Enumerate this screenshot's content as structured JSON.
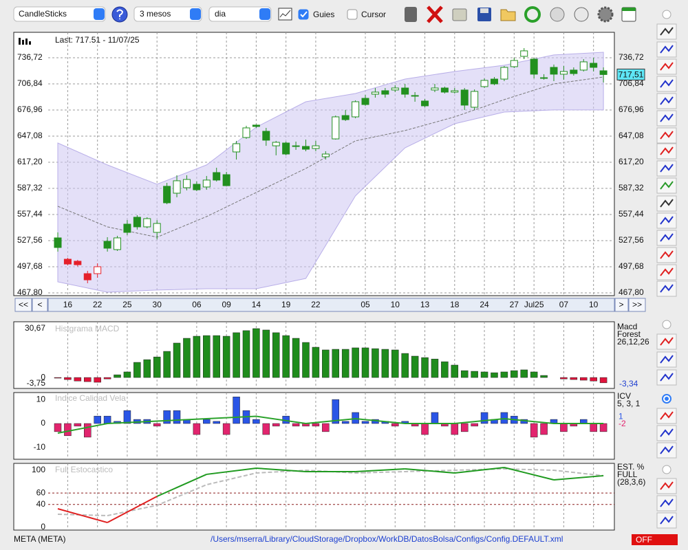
{
  "toolbar": {
    "chart_type": "CandleSticks",
    "range": "3 mesos",
    "interval": "dia",
    "guides": "Guies",
    "guides_checked": true,
    "cursor": "Cursor",
    "cursor_checked": false
  },
  "navigation": {
    "first": "<<",
    "prev": "<",
    "next": ">",
    "last": ">>"
  },
  "status": {
    "symbol": "META (META)",
    "path": "/Users/mserra/Library/CloudStorage/Dropbox/WorkDB/DatosBolsa/Configs/Config.DEFAULT.xml",
    "mode": "OFF"
  },
  "chart_data": [
    {
      "type": "candlestick",
      "annotation": "Last: 717.51 - 11/07/25",
      "categories": [
        null,
        "16",
        null,
        null,
        "22",
        null,
        null,
        "25",
        null,
        null,
        "30",
        null,
        null,
        null,
        "06",
        null,
        null,
        "09",
        null,
        null,
        "14",
        null,
        null,
        "19",
        null,
        null,
        "22",
        null,
        null,
        null,
        null,
        "05",
        null,
        null,
        "10",
        null,
        null,
        "13",
        null,
        null,
        "18",
        null,
        null,
        "24",
        null,
        null,
        "27",
        null,
        "Jul25",
        null,
        null,
        "07",
        null,
        null,
        "10",
        null
      ],
      "open": [
        530.7,
        506.3,
        504,
        489.8,
        489.8,
        526.8,
        517.3,
        546.4,
        554.3,
        543.3,
        537,
        589.7,
        581.8,
        588.1,
        592,
        588.9,
        605.4,
        603,
        629,
        645.5,
        659.7,
        652.6,
        636,
        639.2,
        635.3,
        635.3,
        632.9,
        623.5,
        643.9,
        670.6,
        669.1,
        690.3,
        695,
        699,
        699.8,
        702.1,
        692.7,
        687.2,
        699.8,
        702.1,
        697.4,
        699.8,
        680.1,
        703.7,
        712.3,
        712.3,
        726.5,
        738.3,
        735.1,
        713.9,
        725.7,
        717.9,
        722.6,
        722.6,
        730.4,
        721.8
      ],
      "high": [
        537,
        507.9,
        505.5,
        493,
        501.6,
        531.5,
        533,
        551.1,
        556.7,
        554.3,
        551,
        593.6,
        602.3,
        602.3,
        595.2,
        601.5,
        610.9,
        606.2,
        641.6,
        658.9,
        660.5,
        656.5,
        641.6,
        640.8,
        640.8,
        643.1,
        641.6,
        629.8,
        670.6,
        677,
        688,
        694.2,
        702.1,
        702.1,
        705.3,
        706.8,
        697.4,
        689.5,
        706.8,
        703.7,
        702.1,
        702.1,
        700.5,
        713.1,
        714.7,
        727.3,
        736.7,
        747.7,
        736.7,
        717.9,
        728.9,
        727.3,
        725.7,
        735.1,
        736.7,
        725.7
      ],
      "low": [
        515,
        499.2,
        498,
        478.8,
        485.1,
        515,
        515.8,
        533.8,
        540.2,
        541.7,
        529,
        569.2,
        577.1,
        585,
        584.2,
        585.7,
        595.2,
        590.4,
        620.3,
        643.9,
        656.5,
        636,
        625.1,
        625.1,
        631.4,
        629.8,
        629.8,
        620.3,
        643.1,
        664.4,
        667.5,
        681.7,
        691.1,
        691.1,
        697.4,
        691.1,
        686.4,
        680.1,
        697.4,
        695.8,
        695.8,
        677,
        677,
        702.1,
        705.3,
        710,
        724.9,
        735.1,
        713.1,
        711.6,
        710,
        711.6,
        716.3,
        721,
        721,
        708.4
      ],
      "close": [
        519.7,
        500.8,
        500,
        482.7,
        497.7,
        518.9,
        530.7,
        537,
        543.3,
        552.7,
        547.2,
        570.8,
        596,
        597.5,
        585.7,
        596.8,
        596.8,
        590.4,
        638.4,
        656.5,
        658.1,
        642.4,
        640,
        626.6,
        636,
        632.1,
        636,
        626.6,
        669.1,
        665.9,
        686.4,
        683.2,
        697.4,
        695,
        702.1,
        695,
        693.5,
        681.7,
        702.1,
        697.4,
        699,
        682.5,
        698.2,
        710.8,
        706.8,
        725.7,
        733.6,
        744.6,
        717.9,
        713.1,
        717.9,
        721,
        718.6,
        732,
        725.7,
        717.51
      ],
      "colors": [
        "#22901f",
        "#e5202a",
        "#e5202a",
        "#e5202a",
        "#e5202a",
        "#22901f",
        "#22901f",
        "#22901f",
        "#22901f",
        "#22901f",
        "#22901f",
        "#22901f",
        "#22901f",
        "#22901f",
        "#22901f",
        "#22901f",
        "#22901f",
        "#22901f",
        "#22901f",
        "#22901f",
        "#22901f",
        "#22901f",
        "#22901f",
        "#22901f",
        "#22901f",
        "#22901f",
        "#22901f",
        "#22901f",
        "#22901f",
        "#22901f",
        "#22901f",
        "#22901f",
        "#22901f",
        "#22901f",
        "#22901f",
        "#22901f",
        "#22901f",
        "#22901f",
        "#22901f",
        "#22901f",
        "#22901f",
        "#22901f",
        "#22901f",
        "#22901f",
        "#22901f",
        "#22901f",
        "#22901f",
        "#22901f",
        "#22901f",
        "#22901f",
        "#22901f",
        "#22901f",
        "#22901f",
        "#22901f",
        "#22901f",
        "#22901f"
      ],
      "ylim": [
        467.8,
        765
      ],
      "yticks": [
        {
          "value": 736.72,
          "label": "736,72"
        },
        {
          "value": 706.84,
          "label": "706,84"
        },
        {
          "value": 676.96,
          "label": "676,96"
        },
        {
          "value": 647.08,
          "label": "647,08"
        },
        {
          "value": 617.2,
          "label": "617,20"
        },
        {
          "value": 587.32,
          "label": "587,32"
        },
        {
          "value": 557.44,
          "label": "557,44"
        },
        {
          "value": 527.56,
          "label": "527,56"
        },
        {
          "value": 497.68,
          "label": "497,68"
        },
        {
          "value": 467.8,
          "label": "467,80"
        }
      ],
      "grid": true,
      "last_price": {
        "value": 717.51,
        "label": "717,51"
      },
      "bands": {
        "x": [
          0,
          5,
          10,
          15,
          20,
          25,
          30,
          35,
          40,
          45,
          50,
          55
        ],
        "upper": [
          639.2,
          614.1,
          592,
          614.1,
          657.3,
          686.4,
          695.8,
          712.3,
          721,
          728.1,
          739.9,
          743
        ],
        "lower": [
          480.4,
          468.6,
          471,
          472.5,
          472.5,
          484.3,
          578.7,
          633.7,
          661.2,
          674.6,
          677,
          677
        ],
        "color": "#cdc6f2"
      },
      "moving_average": {
        "x": [
          0,
          5,
          10,
          15,
          20,
          25,
          30,
          35,
          40,
          45,
          50,
          55
        ],
        "values": [
          566.9,
          543.3,
          531.5,
          555.1,
          582.6,
          610.1,
          641.6,
          653.4,
          669.1,
          688.8,
          706.8,
          714.7
        ],
        "color": "#777777"
      }
    },
    {
      "type": "bar",
      "title": "Histgrama MACD",
      "legend": [
        "Macd",
        "Forest",
        "26,12,26"
      ],
      "values": [
        -0.4,
        -1.3,
        -2.2,
        -2.6,
        -3,
        -0.9,
        1.7,
        3.5,
        9.5,
        11.2,
        12.9,
        16.4,
        21.6,
        24.6,
        25.9,
        26.3,
        26.3,
        25.9,
        28.1,
        29.4,
        30.67,
        29.8,
        28.1,
        26.3,
        24.6,
        22,
        19,
        17.3,
        17.7,
        17.7,
        18.6,
        18.6,
        18.1,
        17.7,
        17.3,
        15.1,
        13.4,
        12.5,
        11.6,
        9.9,
        7.8,
        4.3,
        3.9,
        3.5,
        3,
        3.5,
        4.3,
        4.8,
        3.5,
        1.3,
        0,
        -0.9,
        -1.3,
        -1.7,
        -2.2,
        -3.34
      ],
      "ylim": [
        -6,
        34.1
      ],
      "yticks": [
        {
          "value": 30.67,
          "label": "30,67"
        },
        0,
        {
          "value": -3.75,
          "label": "-3,75"
        }
      ],
      "positive_color": "#1f8c1c",
      "negative_color": "#e0143c",
      "current_value": {
        "value": -3.34,
        "label": "-3,34"
      },
      "current_color": "#1f3fd0"
    },
    {
      "type": "bar",
      "title": "Indice Calidad Vela",
      "legend": [
        "ICV",
        "5, 3, 1"
      ],
      "values": [
        -3.4,
        -5.1,
        -1.1,
        -5.7,
        3.1,
        3.1,
        0.9,
        5.4,
        1.7,
        1.7,
        -1.1,
        5.4,
        5.4,
        1.7,
        -4.6,
        1.7,
        0.9,
        -4.6,
        11.1,
        5.4,
        1.7,
        -4.6,
        -1.1,
        3.1,
        -1.1,
        -1.1,
        -1.1,
        -3.4,
        10,
        0.9,
        4.6,
        0.9,
        1.7,
        0.9,
        -1.1,
        0.9,
        -1.1,
        -4.6,
        4.6,
        -1.1,
        -4.6,
        -3.4,
        -1.1,
        4.6,
        1.7,
        4.6,
        3.1,
        1.7,
        -5.7,
        -4.6,
        1.7,
        -3.4,
        -1.1,
        1.7,
        -3.4,
        -3.4
      ],
      "ylim": [
        -14.9,
        12.9
      ],
      "yticks": [
        10,
        0,
        -10
      ],
      "positive_color": "#2a55e6",
      "negative_color": "#e2246e",
      "signal": {
        "x": [
          0,
          5,
          10,
          15,
          20,
          25,
          30,
          35,
          40,
          45,
          50,
          55
        ],
        "values": [
          -4,
          0,
          1,
          2,
          3,
          0,
          2,
          0,
          0,
          2,
          0,
          0
        ],
        "color": "#2aa22a"
      },
      "current_values": [
        1,
        -2
      ],
      "current_colors": [
        "#2a55e6",
        "#e2246e"
      ]
    },
    {
      "type": "line",
      "title": "Full Estocastico",
      "legend": [
        "EST. %",
        "FULL",
        "(28,3,6)"
      ],
      "x": [
        0,
        5,
        10,
        15,
        20,
        25,
        30,
        35,
        40,
        45,
        50,
        55
      ],
      "series": [
        {
          "values": [
            32.5,
            8.4,
            54.2,
            92.8,
            103.6,
            97.6,
            97.6,
            102.4,
            95.2,
            104.8,
            83.1,
            90.4
          ],
          "color": "#1f9a1f"
        },
        {
          "values": [
            22.9,
            20.5,
            38.6,
            74.7,
            95.2,
            100,
            95.2,
            97.6,
            100,
            102.4,
            100,
            90.4
          ],
          "color": "#bbbbbb"
        }
      ],
      "ylim": [
        -3.6,
        112
      ],
      "yticks": [
        100,
        60,
        40,
        0
      ],
      "levels": [
        60,
        40
      ],
      "zone_colors": [
        "#1f9a1f",
        "#2a2a9a",
        "#e02020"
      ],
      "level_color": "#8a1a1a"
    }
  ]
}
